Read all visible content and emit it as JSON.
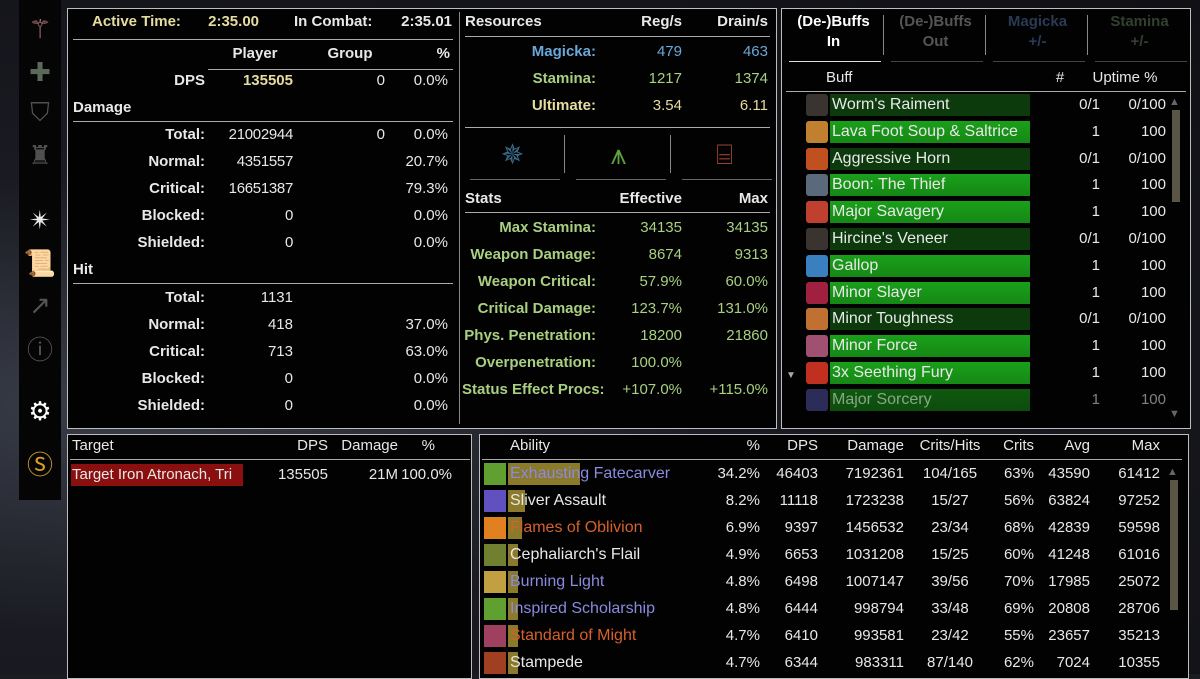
{
  "sidebar": {
    "icons": [
      "axe-icon",
      "plus-icon",
      "shield-icon",
      "castle-icon",
      "star-burst-icon",
      "scroll-icon",
      "chart-up-icon",
      "info-icon",
      "gear-icon",
      "s-coin-icon"
    ]
  },
  "summary": {
    "active_time_label": "Active Time:",
    "active_time": "2:35.00",
    "in_combat_label": "In Combat:",
    "in_combat": "2:35.01",
    "col_player": "Player",
    "col_group": "Group",
    "col_pct": "%",
    "dps_label": "DPS",
    "dps_player": "135505",
    "dps_group": "0",
    "dps_pct": "0.0%",
    "damage_header": "Damage",
    "hit_header": "Hit",
    "damage_rows": [
      {
        "label": "Total:",
        "player": "21002944",
        "group": "0",
        "pct": "0.0%"
      },
      {
        "label": "Normal:",
        "player": "4351557",
        "group": "",
        "pct": "20.7%"
      },
      {
        "label": "Critical:",
        "player": "16651387",
        "group": "",
        "pct": "79.3%"
      },
      {
        "label": "Blocked:",
        "player": "0",
        "group": "",
        "pct": "0.0%"
      },
      {
        "label": "Shielded:",
        "player": "0",
        "group": "",
        "pct": "0.0%"
      }
    ],
    "hit_rows": [
      {
        "label": "Total:",
        "player": "1131",
        "group": "",
        "pct": ""
      },
      {
        "label": "Normal:",
        "player": "418",
        "group": "",
        "pct": "37.0%"
      },
      {
        "label": "Critical:",
        "player": "713",
        "group": "",
        "pct": "63.0%"
      },
      {
        "label": "Blocked:",
        "player": "0",
        "group": "",
        "pct": "0.0%"
      },
      {
        "label": "Shielded:",
        "player": "0",
        "group": "",
        "pct": "0.0%"
      }
    ]
  },
  "resources": {
    "header": "Resources",
    "col_reg": "Reg/s",
    "col_drain": "Drain/s",
    "rows": [
      {
        "label": "Magicka:",
        "reg": "479",
        "drain": "463",
        "color": "#6aa8d8"
      },
      {
        "label": "Stamina:",
        "reg": "1217",
        "drain": "1374",
        "color": "#a8d080"
      },
      {
        "label": "Ultimate:",
        "reg": "3.54",
        "drain": "6.11",
        "color": "#e7dca0"
      }
    ],
    "tabs": [
      {
        "icon": "magicka-icon",
        "color": "#3b6a8a"
      },
      {
        "icon": "stamina-icon",
        "color": "#5fa040"
      },
      {
        "icon": "health-icon",
        "color": "#a04030"
      }
    ]
  },
  "stats": {
    "header": "Stats",
    "col_effective": "Effective",
    "col_max": "Max",
    "rows": [
      {
        "label": "Max Stamina:",
        "effective": "34135",
        "max": "34135"
      },
      {
        "label": "Weapon Damage:",
        "effective": "8674",
        "max": "9313"
      },
      {
        "label": "Weapon Critical:",
        "effective": "57.9%",
        "max": "60.0%"
      },
      {
        "label": "Critical Damage:",
        "effective": "123.7%",
        "max": "131.0%"
      },
      {
        "label": "Phys. Penetration:",
        "effective": "18200",
        "max": "21860"
      },
      {
        "label": "Overpenetration:",
        "effective": "100.0%",
        "max": ""
      },
      {
        "label": "Status Effect Procs:",
        "effective": "+107.0%",
        "max": "+115.0%"
      }
    ]
  },
  "buffs": {
    "tabs": [
      {
        "line1": "(De-)Buffs",
        "line2": "In",
        "active": true
      },
      {
        "line1": "(De-)Buffs",
        "line2": "Out",
        "active": false
      },
      {
        "line1": "Magicka",
        "line2": "+/-",
        "active": false
      },
      {
        "line1": "Stamina",
        "line2": "+/-",
        "active": false
      }
    ],
    "col_buff": "Buff",
    "col_count": "#",
    "col_uptime": "Uptime %",
    "rows": [
      {
        "name": "Worm's Raiment",
        "count": "0/1",
        "uptime": "0/100",
        "active": false,
        "icon": "#3a3430"
      },
      {
        "name": "Lava Foot Soup & Saltrice",
        "count": "1",
        "uptime": "100",
        "active": true,
        "icon": "#c08030"
      },
      {
        "name": "Aggressive Horn",
        "count": "0/1",
        "uptime": "0/100",
        "active": false,
        "icon": "#c05020"
      },
      {
        "name": "Boon: The Thief",
        "count": "1",
        "uptime": "100",
        "active": true,
        "icon": "#5a6a7a"
      },
      {
        "name": "Major Savagery",
        "count": "1",
        "uptime": "100",
        "active": true,
        "icon": "#c04030"
      },
      {
        "name": "Hircine's Veneer",
        "count": "0/1",
        "uptime": "0/100",
        "active": false,
        "icon": "#3a3430"
      },
      {
        "name": "Gallop",
        "count": "1",
        "uptime": "100",
        "active": true,
        "icon": "#3a80c0"
      },
      {
        "name": "Minor Slayer",
        "count": "1",
        "uptime": "100",
        "active": true,
        "icon": "#a02040"
      },
      {
        "name": "Minor Toughness",
        "count": "0/1",
        "uptime": "0/100",
        "active": false,
        "icon": "#c07030"
      },
      {
        "name": "Minor Force",
        "count": "1",
        "uptime": "100",
        "active": true,
        "icon": "#a05070"
      },
      {
        "name": "3x Seething Fury",
        "count": "1",
        "uptime": "100",
        "active": true,
        "icon": "#c03020"
      },
      {
        "name": "Major Sorcery",
        "count": "1",
        "uptime": "100",
        "active": true,
        "icon": "#5050a0"
      }
    ]
  },
  "targets": {
    "col_target": "Target",
    "col_dps": "DPS",
    "col_damage": "Damage",
    "col_pct": "%",
    "rows": [
      {
        "name": "Target Iron Atronach, Tri",
        "dps": "135505",
        "damage": "21M",
        "pct": "100.0%"
      }
    ]
  },
  "abilities": {
    "col_ability": "Ability",
    "col_pct": "%",
    "col_dps": "DPS",
    "col_damage": "Damage",
    "col_crits_hits": "Crits/Hits",
    "col_crits": "Crits",
    "col_avg": "Avg",
    "col_max": "Max",
    "rows": [
      {
        "name": "Exhausting Fatecarver",
        "pct": "34.2%",
        "dps": "46403",
        "damage": "7192361",
        "crits_hits": "104/165",
        "crits": "63%",
        "avg": "43590",
        "max": "61412",
        "color": "#8a8ae0",
        "icon": "#60a030"
      },
      {
        "name": "Sliver Assault",
        "pct": "8.2%",
        "dps": "11118",
        "damage": "1723238",
        "crits_hits": "15/27",
        "crits": "56%",
        "avg": "63824",
        "max": "97252",
        "color": "#e8e8e8",
        "icon": "#6050c0"
      },
      {
        "name": "Flames of Oblivion",
        "pct": "6.9%",
        "dps": "9397",
        "damage": "1456532",
        "crits_hits": "23/34",
        "crits": "68%",
        "avg": "42839",
        "max": "59598",
        "color": "#d8602a",
        "icon": "#e08020"
      },
      {
        "name": "Cephaliarch's Flail",
        "pct": "4.9%",
        "dps": "6653",
        "damage": "1031208",
        "crits_hits": "15/25",
        "crits": "60%",
        "avg": "41248",
        "max": "61016",
        "color": "#e8e8e8",
        "icon": "#708030"
      },
      {
        "name": "Burning Light",
        "pct": "4.8%",
        "dps": "6498",
        "damage": "1007147",
        "crits_hits": "39/56",
        "crits": "70%",
        "avg": "17985",
        "max": "25072",
        "color": "#8a8ae0",
        "icon": "#c0a040"
      },
      {
        "name": "Inspired Scholarship",
        "pct": "4.8%",
        "dps": "6444",
        "damage": "998794",
        "crits_hits": "33/48",
        "crits": "69%",
        "avg": "20808",
        "max": "28706",
        "color": "#8a8ae0",
        "icon": "#60a030"
      },
      {
        "name": "Standard of Might",
        "pct": "4.7%",
        "dps": "6410",
        "damage": "993581",
        "crits_hits": "23/42",
        "crits": "55%",
        "avg": "23657",
        "max": "35213",
        "color": "#d8602a",
        "icon": "#a04060"
      },
      {
        "name": "Stampede",
        "pct": "4.7%",
        "dps": "6344",
        "damage": "983311",
        "crits_hits": "87/140",
        "crits": "62%",
        "avg": "7024",
        "max": "10355",
        "color": "#e8e8e8",
        "icon": "#a04020"
      }
    ]
  }
}
